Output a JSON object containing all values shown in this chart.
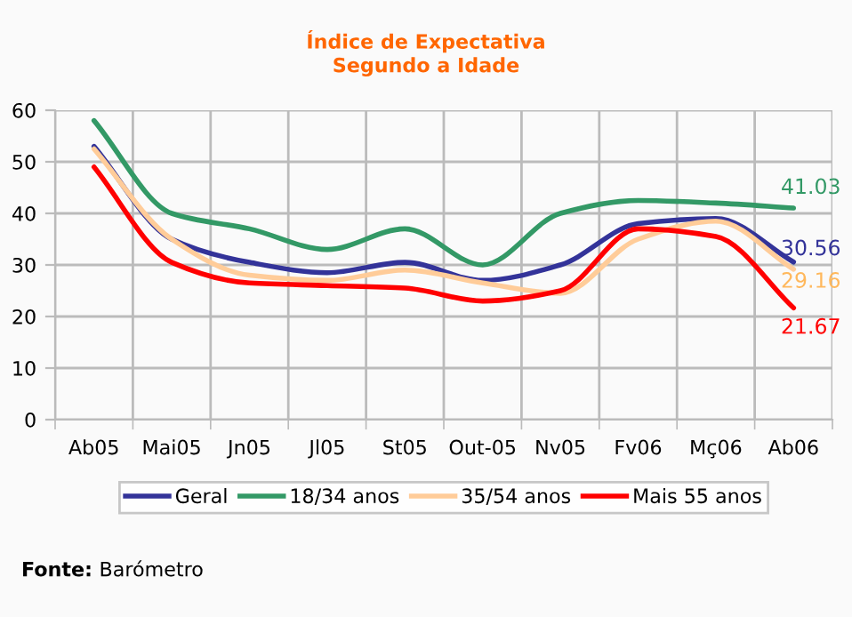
{
  "chart_data": {
    "type": "line",
    "title": "Índice de Expectativa\nSegundo a Idade",
    "categories": [
      "Ab05",
      "Mai05",
      "Jn05",
      "Jl05",
      "St05",
      "Out-05",
      "Nv05",
      "Fv06",
      "Mç06",
      "Ab06"
    ],
    "series": [
      {
        "name": "Geral",
        "color": "#333399",
        "values": [
          53,
          35,
          30.5,
          28.5,
          30.5,
          27,
          30,
          38,
          39,
          30.56
        ],
        "value_labels": [
          null,
          null,
          null,
          null,
          null,
          null,
          null,
          null,
          null,
          "30.56"
        ]
      },
      {
        "name": "18/34 anos",
        "color": "#339966",
        "values": [
          58,
          40,
          37,
          33,
          37,
          30,
          40,
          42.5,
          42,
          41.03
        ],
        "value_labels": [
          null,
          null,
          null,
          null,
          null,
          null,
          null,
          null,
          null,
          "41.03"
        ]
      },
      {
        "name": "35/54 anos",
        "color": "#ffcc99",
        "values": [
          52.5,
          35,
          28,
          27,
          29,
          26.5,
          24.5,
          35,
          38.5,
          29.16
        ],
        "value_labels": [
          null,
          null,
          null,
          null,
          null,
          null,
          null,
          null,
          null,
          "29.16"
        ]
      },
      {
        "name": "Mais 55 anos",
        "color": "#ff0000",
        "values": [
          49,
          30.5,
          26.5,
          26,
          25.5,
          23,
          25,
          37,
          35.5,
          21.67
        ],
        "value_labels": [
          null,
          null,
          null,
          null,
          null,
          null,
          null,
          null,
          null,
          "21.67"
        ]
      }
    ],
    "ylim": [
      0,
      60
    ],
    "yticks": [
      0,
      10,
      20,
      30,
      40,
      50,
      60
    ],
    "grid": true,
    "legend": "bottom",
    "marker": "none",
    "line_style": "solid",
    "annotations": [
      "Fonte: Barómetro"
    ]
  }
}
